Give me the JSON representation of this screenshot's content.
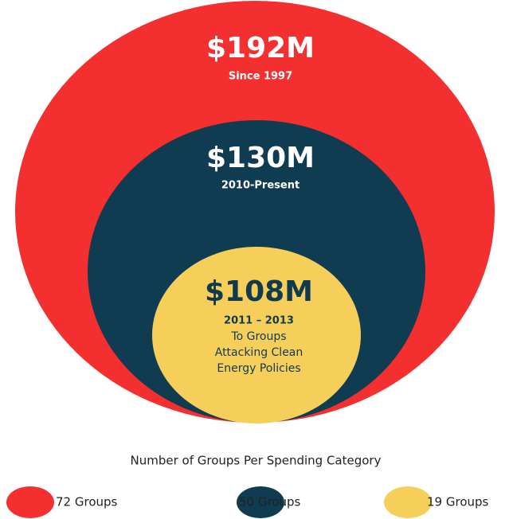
{
  "circles": [
    {
      "amount": "$192M",
      "period": "Since 1997"
    },
    {
      "amount": "$130M",
      "period": "2010-Present"
    },
    {
      "amount": "$108M",
      "period": "2011 – 2013",
      "description": [
        "To Groups",
        "Attacking Clean",
        "Energy Policies"
      ]
    }
  ],
  "legend": {
    "title": "Number of Groups Per Spending Category",
    "items": [
      "72 Groups",
      "50 Groups",
      "19 Groups"
    ]
  }
}
